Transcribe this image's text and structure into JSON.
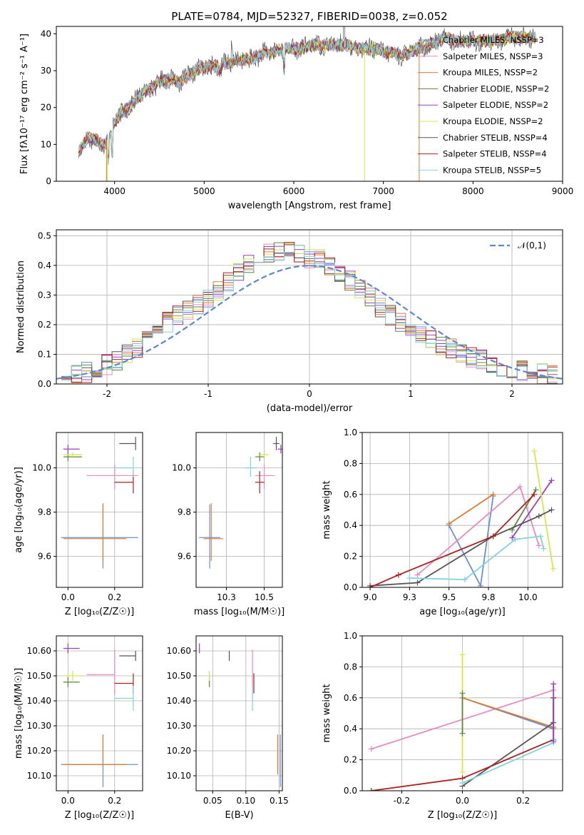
{
  "colors": {
    "s1": "#6a8fd8",
    "s2": "#e98ac3",
    "s3": "#e07b2e",
    "s4": "#5c8a3a",
    "s5": "#9b3ec0",
    "s6": "#d6e64a",
    "s7": "#555555",
    "s8": "#b02020",
    "s9": "#7fd4e0",
    "normal": "#5b87d6",
    "grid": "#b0b0b0"
  },
  "chart_data": [
    {
      "type": "line",
      "title": "PLATE=0784, MJD=52327, FIBERID=0038, z=0.052",
      "xlabel": "wavelength [Angstrom, rest frame]",
      "ylabel": "Flux [fλ10⁻¹⁷ erg cm⁻² s⁻¹ A⁻¹]",
      "xlim": [
        3350,
        9000
      ],
      "ylim": [
        0,
        42
      ],
      "xticks": [
        4000,
        5000,
        6000,
        7000,
        8000,
        9000
      ],
      "yticks": [
        0,
        10,
        20,
        30,
        40
      ],
      "grid": false,
      "legend": "top-right",
      "legend_entries": [
        "Chabrier MILES, NSSP=3",
        "Salpeter MILES, NSSP=3",
        "Kroupa MILES, NSSP=2",
        "Chabrier ELODIE, NSSP=2",
        "Salpeter ELODIE, NSSP=2",
        "Kroupa ELODIE, NSSP=2",
        "Chabrier STELIB, NSSP=4",
        "Salpeter STELIB, NSSP=4",
        "Kroupa STELIB, NSSP=5"
      ],
      "spectrum_x": [
        3600,
        3700,
        3800,
        3900,
        4000,
        4100,
        4200,
        4300,
        4400,
        4500,
        4600,
        4700,
        4800,
        4900,
        5000,
        5100,
        5200,
        5300,
        5400,
        5500,
        5600,
        5700,
        5800,
        5900,
        6000,
        6100,
        6200,
        6300,
        6400,
        6500,
        6600,
        6700,
        6800,
        6900,
        7000,
        7100,
        7200,
        7300,
        7400,
        7500,
        7600,
        7700,
        7800,
        7900,
        8000,
        8100,
        8200,
        8300,
        8400,
        8500,
        8600,
        8700
      ],
      "spectrum_y": [
        8,
        12,
        11,
        10,
        16,
        19,
        21,
        24,
        25,
        27,
        28,
        27,
        28,
        30,
        31,
        31,
        32,
        32,
        33,
        33,
        34,
        35,
        35,
        36,
        36,
        36,
        37,
        37,
        37,
        37,
        37,
        36,
        36,
        36,
        35,
        35,
        34,
        35,
        36,
        37,
        38,
        39,
        38,
        38,
        38,
        38,
        38,
        38,
        39,
        39,
        39,
        39
      ]
    },
    {
      "type": "step",
      "xlabel": "(data-model)/error",
      "ylabel": "Normed distribution",
      "xlim": [
        -2.5,
        2.5
      ],
      "ylim": [
        0,
        0.52
      ],
      "xticks": [
        -2,
        -1,
        0,
        1,
        2
      ],
      "yticks": [
        0.0,
        0.1,
        0.2,
        0.3,
        0.4,
        0.5
      ],
      "grid": true,
      "legend": "top-right",
      "legend_entries": [
        "𝒩(0,1)"
      ],
      "bin_centers": [
        -2.4,
        -2.3,
        -2.2,
        -2.1,
        -2.0,
        -1.9,
        -1.8,
        -1.7,
        -1.6,
        -1.5,
        -1.4,
        -1.3,
        -1.2,
        -1.1,
        -1.0,
        -0.9,
        -0.8,
        -0.7,
        -0.6,
        -0.5,
        -0.4,
        -0.3,
        -0.2,
        -0.1,
        0.0,
        0.1,
        0.2,
        0.3,
        0.4,
        0.5,
        0.6,
        0.7,
        0.8,
        0.9,
        1.0,
        1.1,
        1.2,
        1.3,
        1.4,
        1.5,
        1.6,
        1.7,
        1.8,
        1.9,
        2.0,
        2.1,
        2.2,
        2.3,
        2.4
      ],
      "hist_mean": [
        0.03,
        0.035,
        0.04,
        0.05,
        0.065,
        0.08,
        0.1,
        0.12,
        0.15,
        0.18,
        0.21,
        0.23,
        0.25,
        0.27,
        0.29,
        0.31,
        0.34,
        0.38,
        0.41,
        0.43,
        0.44,
        0.45,
        0.46,
        0.44,
        0.42,
        0.42,
        0.4,
        0.38,
        0.35,
        0.32,
        0.29,
        0.26,
        0.23,
        0.21,
        0.19,
        0.17,
        0.15,
        0.13,
        0.12,
        0.1,
        0.09,
        0.08,
        0.07,
        0.06,
        0.05,
        0.045,
        0.04,
        0.035,
        0.03
      ]
    },
    {
      "type": "errorbar",
      "xlabel": "Z [log₁₀(Z/Z☉)]",
      "ylabel": "age  [log₁₀(age/yr)]",
      "xlim": [
        -0.05,
        0.32
      ],
      "ylim": [
        9.46,
        10.16
      ],
      "xticks": [
        0.0,
        0.2
      ],
      "yticks": [
        9.6,
        9.8,
        10.0
      ],
      "grid": true,
      "points": [
        {
          "x": 0.15,
          "y": 9.685,
          "xerr": [
            0.18,
            0.15
          ],
          "yerr": [
            0.14,
            0.15
          ],
          "c": "s1"
        },
        {
          "x": 0.2,
          "y": 9.965,
          "xerr": [
            0.12,
            0.1
          ],
          "yerr": [
            0.06,
            0.05
          ],
          "c": "s2"
        },
        {
          "x": 0.15,
          "y": 9.68,
          "xerr": [
            0.17,
            0.1
          ],
          "yerr": [
            0.1,
            0.16
          ],
          "c": "s3"
        },
        {
          "x": 0.0,
          "y": 10.05,
          "xerr": [
            0.02,
            0.06
          ],
          "yerr": [
            0.02,
            0.02
          ],
          "c": "s4"
        },
        {
          "x": 0.0,
          "y": 10.085,
          "xerr": [
            0.02,
            0.05
          ],
          "yerr": [
            0.02,
            0.02
          ],
          "c": "s5"
        },
        {
          "x": 0.02,
          "y": 10.06,
          "xerr": [
            0.04,
            0.04
          ],
          "yerr": [
            0.01,
            0.01
          ],
          "c": "s6"
        },
        {
          "x": 0.29,
          "y": 10.11,
          "xerr": [
            0.07,
            0.0
          ],
          "yerr": [
            0.03,
            0.03
          ],
          "c": "s7"
        },
        {
          "x": 0.28,
          "y": 9.935,
          "xerr": [
            0.08,
            0.0
          ],
          "yerr": [
            0.05,
            0.05
          ],
          "c": "s8"
        },
        {
          "x": 0.28,
          "y": 10.0,
          "xerr": [
            0.08,
            0.0
          ],
          "yerr": [
            0.04,
            0.05
          ],
          "c": "s9"
        }
      ]
    },
    {
      "type": "errorbar",
      "xlabel": "mass [log₁₀(M/M☉)]",
      "xlim": [
        10.05,
        10.62
      ],
      "ylim": [
        9.46,
        10.16
      ],
      "xticks": [
        10.25,
        10.5
      ],
      "yticks": [
        9.6,
        9.8,
        10.0
      ],
      "grid": true,
      "points": [
        {
          "x": 10.14,
          "y": 9.685,
          "xerr": [
            0.07,
            0.07
          ],
          "yerr": [
            0.14,
            0.15
          ],
          "c": "s1"
        },
        {
          "x": 10.5,
          "y": 9.965,
          "xerr": [
            0.06,
            0.07
          ],
          "yerr": [
            0.06,
            0.05
          ],
          "c": "s2"
        },
        {
          "x": 10.15,
          "y": 9.68,
          "xerr": [
            0.05,
            0.08
          ],
          "yerr": [
            0.1,
            0.16
          ],
          "c": "s3"
        },
        {
          "x": 10.47,
          "y": 10.05,
          "xerr": [
            0.03,
            0.03
          ],
          "yerr": [
            0.02,
            0.02
          ],
          "c": "s4"
        },
        {
          "x": 10.61,
          "y": 10.085,
          "xerr": [
            0.02,
            0.02
          ],
          "yerr": [
            0.02,
            0.02
          ],
          "c": "s5"
        },
        {
          "x": 10.5,
          "y": 10.06,
          "xerr": [
            0.03,
            0.03
          ],
          "yerr": [
            0.01,
            0.01
          ],
          "c": "s6"
        },
        {
          "x": 10.58,
          "y": 10.11,
          "xerr": [
            0.02,
            0.02
          ],
          "yerr": [
            0.03,
            0.03
          ],
          "c": "s7"
        },
        {
          "x": 10.47,
          "y": 9.935,
          "xerr": [
            0.03,
            0.03
          ],
          "yerr": [
            0.05,
            0.05
          ],
          "c": "s8"
        },
        {
          "x": 10.41,
          "y": 10.0,
          "xerr": [
            0.04,
            0.04
          ],
          "yerr": [
            0.04,
            0.05
          ],
          "c": "s9"
        }
      ]
    },
    {
      "type": "line",
      "xlabel": "age  [log₁₀(age/yr)]",
      "ylabel": "mass weight",
      "xlim": [
        8.95,
        10.22
      ],
      "ylim": [
        0,
        1.0
      ],
      "xticks": [
        9.0,
        9.25,
        9.5,
        9.75,
        10.0
      ],
      "yticks": [
        0.0,
        0.2,
        0.4,
        0.6,
        0.8,
        1.0
      ],
      "grid": true,
      "series": [
        {
          "c": "s1",
          "x": [
            9.5,
            9.7,
            9.78
          ],
          "y": [
            0.4,
            0.01,
            0.59
          ]
        },
        {
          "c": "s2",
          "x": [
            9.3,
            9.95,
            10.07
          ],
          "y": [
            0.08,
            0.65,
            0.27
          ]
        },
        {
          "c": "s3",
          "x": [
            9.5,
            9.78
          ],
          "y": [
            0.41,
            0.6
          ]
        },
        {
          "c": "s4",
          "x": [
            9.9,
            10.05
          ],
          "y": [
            0.37,
            0.63
          ]
        },
        {
          "c": "s5",
          "x": [
            9.9,
            10.15
          ],
          "y": [
            0.32,
            0.69
          ]
        },
        {
          "c": "s6",
          "x": [
            10.04,
            10.16
          ],
          "y": [
            0.88,
            0.12
          ]
        },
        {
          "c": "s7",
          "x": [
            9.0,
            9.3,
            9.78,
            10.07,
            10.15
          ],
          "y": [
            0.01,
            0.03,
            0.33,
            0.46,
            0.5
          ]
        },
        {
          "c": "s8",
          "x": [
            9.0,
            9.18,
            9.78,
            10.04
          ],
          "y": [
            0.0,
            0.08,
            0.33,
            0.6
          ]
        },
        {
          "c": "s9",
          "x": [
            9.25,
            9.6,
            9.92,
            10.08,
            10.1
          ],
          "y": [
            0.06,
            0.05,
            0.31,
            0.33,
            0.25
          ]
        }
      ]
    },
    {
      "type": "errorbar",
      "xlabel": "Z [log₁₀(Z/Z☉)]",
      "ylabel": "mass [log₁₀(M/M☉)]",
      "xlim": [
        -0.05,
        0.32
      ],
      "ylim": [
        10.04,
        10.66
      ],
      "xticks": [
        0.0,
        0.2
      ],
      "yticks": [
        10.1,
        10.2,
        10.3,
        10.4,
        10.5,
        10.6
      ],
      "grid": true,
      "points": [
        {
          "x": 0.15,
          "y": 10.145,
          "xerr": [
            0.18,
            0.15
          ],
          "yerr": [
            0.09,
            0.12
          ],
          "c": "s1"
        },
        {
          "x": 0.2,
          "y": 10.505,
          "xerr": [
            0.12,
            0.0
          ],
          "yerr": [
            0.08,
            0.1
          ],
          "c": "s2"
        },
        {
          "x": 0.15,
          "y": 10.145,
          "xerr": [
            0.17,
            0.1
          ],
          "yerr": [
            0.0,
            0.12
          ],
          "c": "s3"
        },
        {
          "x": 0.0,
          "y": 10.475,
          "xerr": [
            0.02,
            0.05
          ],
          "yerr": [
            0.02,
            0.02
          ],
          "c": "s4"
        },
        {
          "x": 0.0,
          "y": 10.61,
          "xerr": [
            0.02,
            0.05
          ],
          "yerr": [
            0.02,
            0.02
          ],
          "c": "s5"
        },
        {
          "x": 0.02,
          "y": 10.5,
          "xerr": [
            0.04,
            0.04
          ],
          "yerr": [
            0.02,
            0.02
          ],
          "c": "s6"
        },
        {
          "x": 0.29,
          "y": 10.58,
          "xerr": [
            0.07,
            0.0
          ],
          "yerr": [
            0.02,
            0.02
          ],
          "c": "s7"
        },
        {
          "x": 0.28,
          "y": 10.47,
          "xerr": [
            0.08,
            0.0
          ],
          "yerr": [
            0.04,
            0.04
          ],
          "c": "s8"
        },
        {
          "x": 0.28,
          "y": 10.41,
          "xerr": [
            0.08,
            0.0
          ],
          "yerr": [
            0.05,
            0.05
          ],
          "c": "s9"
        }
      ]
    },
    {
      "type": "errorbar",
      "xlabel": "E(B-V)",
      "xlim": [
        0.025,
        0.155
      ],
      "ylim": [
        10.04,
        10.66
      ],
      "xticks": [
        0.05,
        0.1,
        0.15
      ],
      "yticks": [
        10.1,
        10.2,
        10.3,
        10.4,
        10.5,
        10.6
      ],
      "grid": true,
      "points": [
        {
          "x": 0.152,
          "y": 10.145,
          "xerr": [
            0.0,
            0.0
          ],
          "yerr": [
            0.09,
            0.12
          ],
          "c": "s1"
        },
        {
          "x": 0.11,
          "y": 10.505,
          "xerr": [
            0.0,
            0.0
          ],
          "yerr": [
            0.08,
            0.1
          ],
          "c": "s2"
        },
        {
          "x": 0.148,
          "y": 10.145,
          "xerr": [
            0.0,
            0.0
          ],
          "yerr": [
            0.04,
            0.12
          ],
          "c": "s3"
        },
        {
          "x": 0.045,
          "y": 10.475,
          "xerr": [
            0.0,
            0.0
          ],
          "yerr": [
            0.02,
            0.02
          ],
          "c": "s4"
        },
        {
          "x": 0.03,
          "y": 10.61,
          "xerr": [
            0.0,
            0.0
          ],
          "yerr": [
            0.02,
            0.02
          ],
          "c": "s5"
        },
        {
          "x": 0.045,
          "y": 10.5,
          "xerr": [
            0.0,
            0.0
          ],
          "yerr": [
            0.02,
            0.02
          ],
          "c": "s6"
        },
        {
          "x": 0.075,
          "y": 10.58,
          "xerr": [
            0.0,
            0.0
          ],
          "yerr": [
            0.02,
            0.02
          ],
          "c": "s7"
        },
        {
          "x": 0.112,
          "y": 10.47,
          "xerr": [
            0.0,
            0.0
          ],
          "yerr": [
            0.04,
            0.04
          ],
          "c": "s8"
        },
        {
          "x": 0.11,
          "y": 10.41,
          "xerr": [
            0.0,
            0.0
          ],
          "yerr": [
            0.05,
            0.05
          ],
          "c": "s9"
        }
      ]
    },
    {
      "type": "line",
      "xlabel": "Z [log₁₀(Z/Z☉)]",
      "ylabel": "mass weight",
      "xlim": [
        -0.33,
        0.33
      ],
      "ylim": [
        0,
        1.0
      ],
      "xticks": [
        -0.2,
        0.0,
        0.2
      ],
      "yticks": [
        0.0,
        0.2,
        0.4,
        0.6,
        0.8,
        1.0
      ],
      "grid": true,
      "series": [
        {
          "c": "s2",
          "x": [
            -0.3,
            0.3
          ],
          "y": [
            0.27,
            0.65
          ]
        },
        {
          "c": "s1",
          "x": [
            0.0,
            0.3
          ],
          "y": [
            0.6,
            0.4
          ]
        },
        {
          "c": "s3",
          "x": [
            0.0,
            0.3
          ],
          "y": [
            0.6,
            0.41
          ]
        },
        {
          "c": "s6",
          "x": [
            0.0,
            0.0
          ],
          "y": [
            0.12,
            0.88
          ]
        },
        {
          "c": "s7",
          "x": [
            0.0,
            0.3,
            0.3
          ],
          "y": [
            0.03,
            0.44,
            0.6
          ]
        },
        {
          "c": "s8",
          "x": [
            -0.3,
            0.0,
            0.3,
            0.3
          ],
          "y": [
            0.0,
            0.08,
            0.33,
            0.6
          ]
        },
        {
          "c": "s9",
          "x": [
            0.0,
            0.3,
            0.3
          ],
          "y": [
            0.05,
            0.31,
            0.33
          ]
        },
        {
          "c": "s4",
          "x": [
            0.0,
            0.0
          ],
          "y": [
            0.37,
            0.63
          ]
        },
        {
          "c": "s5",
          "x": [
            0.3,
            0.3
          ],
          "y": [
            0.32,
            0.69
          ]
        }
      ]
    }
  ]
}
